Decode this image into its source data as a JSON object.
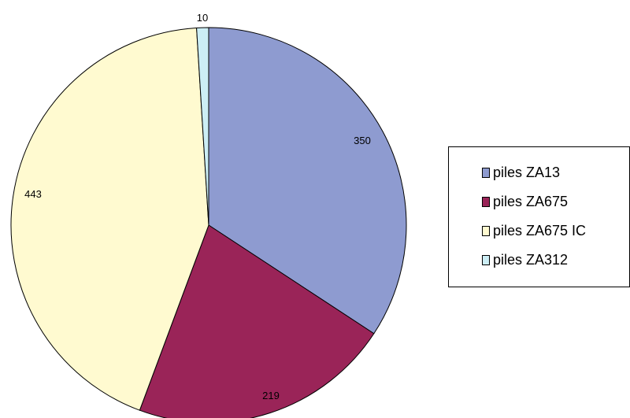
{
  "chart_data": {
    "type": "pie",
    "title": "",
    "series": [
      {
        "values": [
          350,
          219,
          443,
          10
        ]
      }
    ],
    "categories": [
      "piles ZA13",
      "piles ZA675",
      "piles ZA675 IC",
      "piles ZA312"
    ],
    "data_labels": [
      "350",
      "219",
      "443",
      "10"
    ],
    "colors": [
      "#8E9BD0",
      "#9A2458",
      "#FFFAD0",
      "#CCEEF5"
    ],
    "start_angle_deg": 0,
    "direction": "clockwise",
    "legend": {
      "placement": "right",
      "items": [
        {
          "label": "piles ZA13",
          "color": "#8E9BD0"
        },
        {
          "label": "piles ZA675",
          "color": "#9A2458"
        },
        {
          "label": "piles ZA675 IC",
          "color": "#FFFAD0"
        },
        {
          "label": "piles ZA312",
          "color": "#CCEEF5"
        }
      ]
    }
  }
}
